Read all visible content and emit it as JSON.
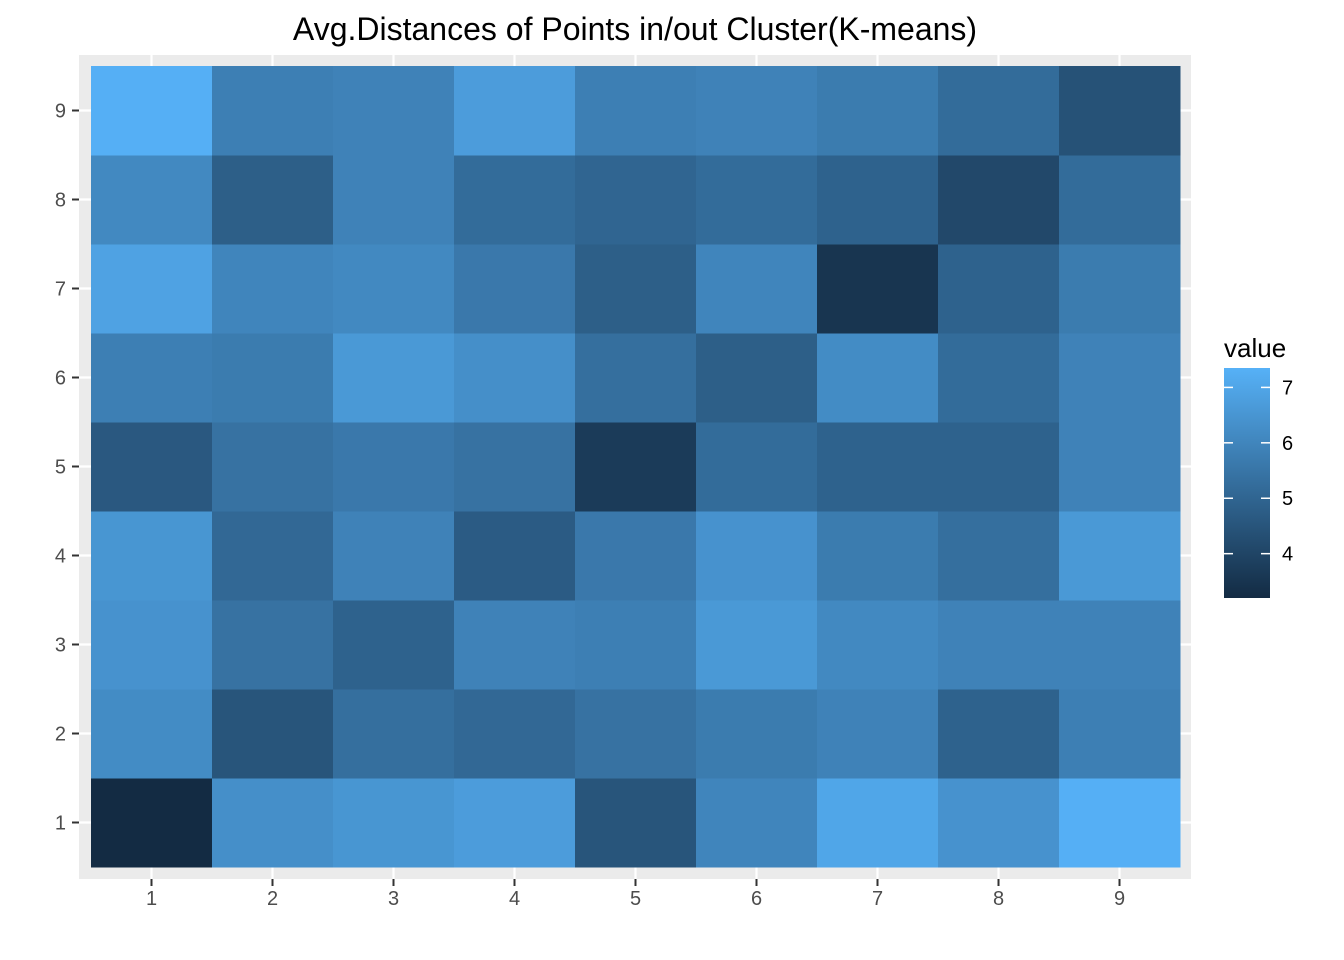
{
  "chart_data": {
    "type": "heatmap",
    "title": "Avg.Distances of Points in/out Cluster(K-means)",
    "xlabel": "",
    "ylabel": "",
    "x_categories": [
      "1",
      "2",
      "3",
      "4",
      "5",
      "6",
      "7",
      "8",
      "9"
    ],
    "y_categories": [
      "1",
      "2",
      "3",
      "4",
      "5",
      "6",
      "7",
      "8",
      "9"
    ],
    "values": [
      [
        3.2,
        6.3,
        6.5,
        6.7,
        4.5,
        6.0,
        7.0,
        6.4,
        7.3
      ],
      [
        6.2,
        4.5,
        5.3,
        5.1,
        5.4,
        5.7,
        5.9,
        4.9,
        5.8
      ],
      [
        6.4,
        5.4,
        4.9,
        5.9,
        5.8,
        6.6,
        6.1,
        5.9,
        5.9
      ],
      [
        6.5,
        5.1,
        5.9,
        4.7,
        5.6,
        6.4,
        5.7,
        5.3,
        6.6
      ],
      [
        4.6,
        5.4,
        5.6,
        5.4,
        3.7,
        5.2,
        4.9,
        4.9,
        5.9
      ],
      [
        5.8,
        5.7,
        6.6,
        6.3,
        5.3,
        4.8,
        6.2,
        5.2,
        5.9
      ],
      [
        6.9,
        6.0,
        6.1,
        5.6,
        4.8,
        6.0,
        3.5,
        4.9,
        5.7
      ],
      [
        6.1,
        4.8,
        5.9,
        5.2,
        5.0,
        5.2,
        4.9,
        4.1,
        5.2
      ],
      [
        7.3,
        5.8,
        5.9,
        6.7,
        5.8,
        5.9,
        5.7,
        5.2,
        4.4
      ]
    ],
    "value_range": [
      3.2,
      7.35
    ],
    "legend": {
      "title": "value",
      "ticks": [
        4,
        5,
        6,
        7
      ],
      "position": "right",
      "low_color": "#132B43",
      "high_color": "#56B1F7"
    },
    "panel_background": "#EBEBEB",
    "grid": true
  }
}
